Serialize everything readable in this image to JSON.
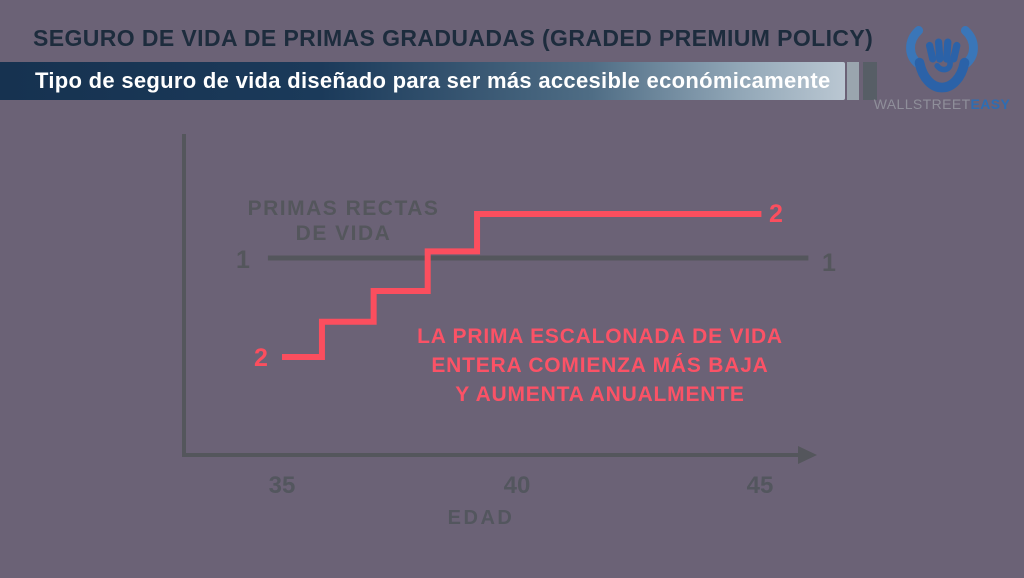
{
  "header": {
    "title": "SEGURO DE VIDA DE PRIMAS GRADUADAS (GRADED PREMIUM POLICY)",
    "subtitle": "Tipo de seguro de vida diseñado para ser más accesible económicamente"
  },
  "logo": {
    "icon": "bull-icon",
    "brand_gray": "WALLSTREET",
    "brand_accent": "EASY"
  },
  "colors": {
    "background": "#6b6276",
    "title_navy": "#1d2c3d",
    "banner_gradient_start": "#163250",
    "banner_gradient_end": "#bac7d2",
    "banner_strip_light": "#9aa5ae",
    "banner_strip_dark": "#575e66",
    "axis_gray": "#54565c",
    "series1_gray": "#54565c",
    "series2_red": "#fb4e5e",
    "logo_blue": "#2f6db1",
    "logo_gray": "#8f8f9a",
    "banner_text": "#ffffff"
  },
  "chart_data": {
    "type": "line",
    "title": "",
    "xlabel": "EDAD",
    "ylabel": "",
    "x_ticks": [
      "35",
      "40",
      "45"
    ],
    "x_range": [
      34.5,
      46.5
    ],
    "grid": false,
    "legend_position": "inline-endpoint-markers",
    "series": [
      {
        "name": "PRIMAS RECTAS DE VIDA",
        "label_lines": [
          "PRIMAS RECTAS",
          "DE VIDA"
        ],
        "endpoint_marker": "1",
        "style": "flat",
        "color": "#54565c",
        "x_start": 34.7,
        "x_end": 46.2,
        "value": 1.0
      },
      {
        "name": "PRIMA ESCALONADA DE VIDA ENTERA",
        "endpoint_marker": "2",
        "style": "step",
        "color": "#fb4e5e",
        "points": [
          [
            35.0,
            0.55
          ],
          [
            35.85,
            0.55
          ],
          [
            35.85,
            0.71
          ],
          [
            36.95,
            0.71
          ],
          [
            36.95,
            0.85
          ],
          [
            38.1,
            0.85
          ],
          [
            38.1,
            1.03
          ],
          [
            39.15,
            1.03
          ],
          [
            39.15,
            1.2
          ],
          [
            45.2,
            1.2
          ]
        ]
      }
    ],
    "annotation_lines": [
      "LA PRIMA ESCALONADA DE VIDA",
      "ENTERA COMIENZA MÁS BAJA",
      "Y AUMENTA ANUALMENTE"
    ]
  }
}
